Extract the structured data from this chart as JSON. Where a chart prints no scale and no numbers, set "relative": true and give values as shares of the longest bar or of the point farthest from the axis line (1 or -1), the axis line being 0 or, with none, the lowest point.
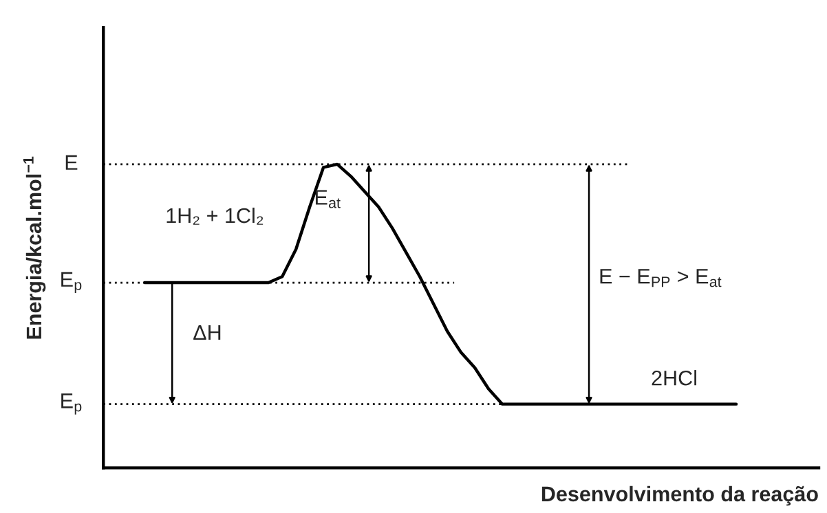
{
  "chart_data": {
    "type": "line",
    "relative": true,
    "xlabel": "Desenvolvimento da reação",
    "ylabel": "Energia/kcal.mol$^{−1}$",
    "legend": false,
    "grid": false,
    "categories": [
      null,
      null,
      null,
      null,
      null,
      null,
      null,
      null,
      null,
      null,
      null,
      null,
      null,
      null,
      null,
      null,
      null,
      null,
      null,
      null,
      null,
      null,
      null,
      null,
      null,
      null,
      null,
      null,
      null,
      null,
      null,
      null,
      null,
      null,
      null,
      null,
      null,
      null,
      null,
      null,
      null,
      null,
      null,
      null
    ],
    "series": [
      {
        "color": "#000000",
        "values": [
          0.61,
          0.61,
          0.61,
          0.61,
          0.61,
          0.61,
          0.61,
          0.61,
          0.61,
          0.61,
          0.63,
          0.72,
          0.86,
          0.99,
          1,
          0.96,
          0.91,
          0.86,
          0.79,
          0.71,
          0.63,
          0.54,
          0.45,
          0.38,
          0.33,
          0.26,
          0.21,
          0.21,
          0.21,
          0.21,
          0.21,
          0.21,
          0.21,
          0.21,
          0.21,
          0.21,
          0.21,
          0.21,
          0.21,
          0.21,
          0.21,
          0.21,
          0.21,
          0.21
        ]
      }
    ],
    "ref_lines": [
      {
        "axis": "y",
        "value": 1,
        "label": "E",
        "line_style": "dotted"
      },
      {
        "axis": "y",
        "value": 0.61,
        "label": "E$_{p}$",
        "line_style": "dotted"
      },
      {
        "axis": "y",
        "value": 0.21,
        "label": "E$_{p}$",
        "line_style": "dotted"
      }
    ],
    "annotations": [
      "1H₂ + 1Cl₂",
      "E$_{at}$",
      "ΔH",
      "E − E$_{PP}$ > E$_{at}$",
      "2HCl"
    ]
  }
}
